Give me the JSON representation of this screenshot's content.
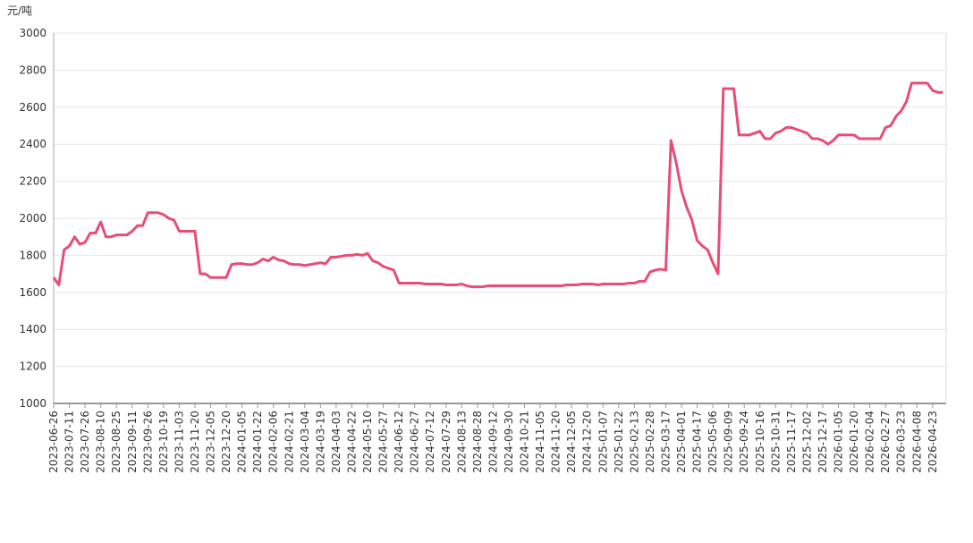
{
  "chart_data": {
    "type": "line",
    "y_label": "元/吨",
    "categories": [
      "2023-06-26",
      null,
      null,
      "2023-07-11",
      null,
      null,
      "2023-07-26",
      null,
      null,
      "2023-08-10",
      null,
      null,
      "2023-08-25",
      null,
      null,
      "2023-09-11",
      null,
      null,
      "2023-09-26",
      null,
      null,
      "2023-10-19",
      null,
      null,
      "2023-11-03",
      null,
      null,
      "2023-11-20",
      null,
      null,
      "2023-12-05",
      null,
      null,
      "2023-12-20",
      null,
      null,
      "2024-01-05",
      null,
      null,
      "2024-01-22",
      null,
      null,
      "2024-02-06",
      null,
      null,
      "2024-02-21",
      null,
      null,
      "2024-03-04",
      null,
      null,
      "2024-03-19",
      null,
      null,
      "2024-04-03",
      null,
      null,
      "2024-04-22",
      null,
      null,
      "2024-05-10",
      null,
      null,
      "2024-05-27",
      null,
      null,
      "2024-06-12",
      null,
      null,
      "2024-06-27",
      null,
      null,
      "2024-07-12",
      null,
      null,
      "2024-07-29",
      null,
      null,
      "2024-08-13",
      null,
      null,
      "2024-08-28",
      null,
      null,
      "2024-09-12",
      null,
      null,
      "2024-09-30",
      null,
      null,
      "2024-10-21",
      null,
      null,
      "2024-11-05",
      null,
      null,
      "2024-11-20",
      null,
      null,
      "2024-12-05",
      null,
      null,
      "2024-12-20",
      null,
      null,
      "2025-01-07",
      null,
      null,
      "2025-01-22",
      null,
      null,
      "2025-02-13",
      null,
      null,
      "2025-02-28",
      null,
      null,
      "2025-03-17",
      null,
      null,
      "2025-04-01",
      null,
      null,
      "2025-04-17",
      null,
      null,
      "2025-05-06",
      null,
      null,
      "2025-09-09",
      null,
      null,
      "2025-09-24",
      null,
      null,
      "2025-10-16",
      null,
      null,
      "2025-10-31",
      null,
      null,
      "2025-11-17",
      null,
      null,
      "2025-12-02",
      null,
      null,
      "2025-12-17",
      null,
      null,
      "2026-01-05",
      null,
      null,
      "2026-01-20",
      null,
      null,
      "2026-02-04",
      null,
      null,
      "2026-02-27",
      null,
      null,
      "2026-03-23",
      null,
      null,
      "2026-04-08",
      null,
      null,
      "2026-04-23",
      null,
      null
    ],
    "series": [
      {
        "color": "#e84d76",
        "values": [
          1680,
          1640,
          1830,
          1850,
          1900,
          1860,
          1870,
          1920,
          1920,
          1980,
          1900,
          1900,
          1910,
          1910,
          1910,
          1930,
          1960,
          1960,
          2030,
          2030,
          2030,
          2020,
          2000,
          1990,
          1930,
          1930,
          1930,
          1930,
          1700,
          1700,
          1680,
          1680,
          1680,
          1680,
          1750,
          1755,
          1755,
          1750,
          1750,
          1760,
          1780,
          1770,
          1790,
          1775,
          1770,
          1755,
          1750,
          1750,
          1745,
          1750,
          1755,
          1760,
          1755,
          1790,
          1790,
          1795,
          1800,
          1800,
          1805,
          1800,
          1810,
          1770,
          1760,
          1740,
          1730,
          1720,
          1650,
          1650,
          1650,
          1650,
          1650,
          1645,
          1645,
          1645,
          1645,
          1640,
          1640,
          1640,
          1645,
          1635,
          1630,
          1630,
          1630,
          1635,
          1635,
          1635,
          1635,
          1635,
          1635,
          1635,
          1635,
          1635,
          1635,
          1635,
          1635,
          1635,
          1635,
          1635,
          1640,
          1640,
          1640,
          1645,
          1645,
          1645,
          1640,
          1645,
          1645,
          1645,
          1645,
          1645,
          1650,
          1650,
          1660,
          1660,
          1710,
          1720,
          1725,
          1720,
          2420,
          2300,
          2150,
          2060,
          1990,
          1880,
          1850,
          1830,
          1760,
          1700,
          2700,
          2700,
          2700,
          2450,
          2450,
          2450,
          2460,
          2470,
          2430,
          2430,
          2460,
          2470,
          2490,
          2490,
          2480,
          2470,
          2460,
          2430,
          2430,
          2420,
          2400,
          2420,
          2450,
          2450,
          2450,
          2450,
          2430,
          2430,
          2430,
          2430,
          2430,
          2490,
          2500,
          2550,
          2580,
          2630,
          2730,
          2730,
          2730,
          2730,
          2690,
          2680,
          2680
        ]
      }
    ],
    "ylim": [
      1000,
      3000
    ],
    "yticks": [
      1000,
      1200,
      1400,
      1600,
      1800,
      2000,
      2200,
      2400,
      2600,
      2800,
      3000
    ],
    "grid": true
  }
}
